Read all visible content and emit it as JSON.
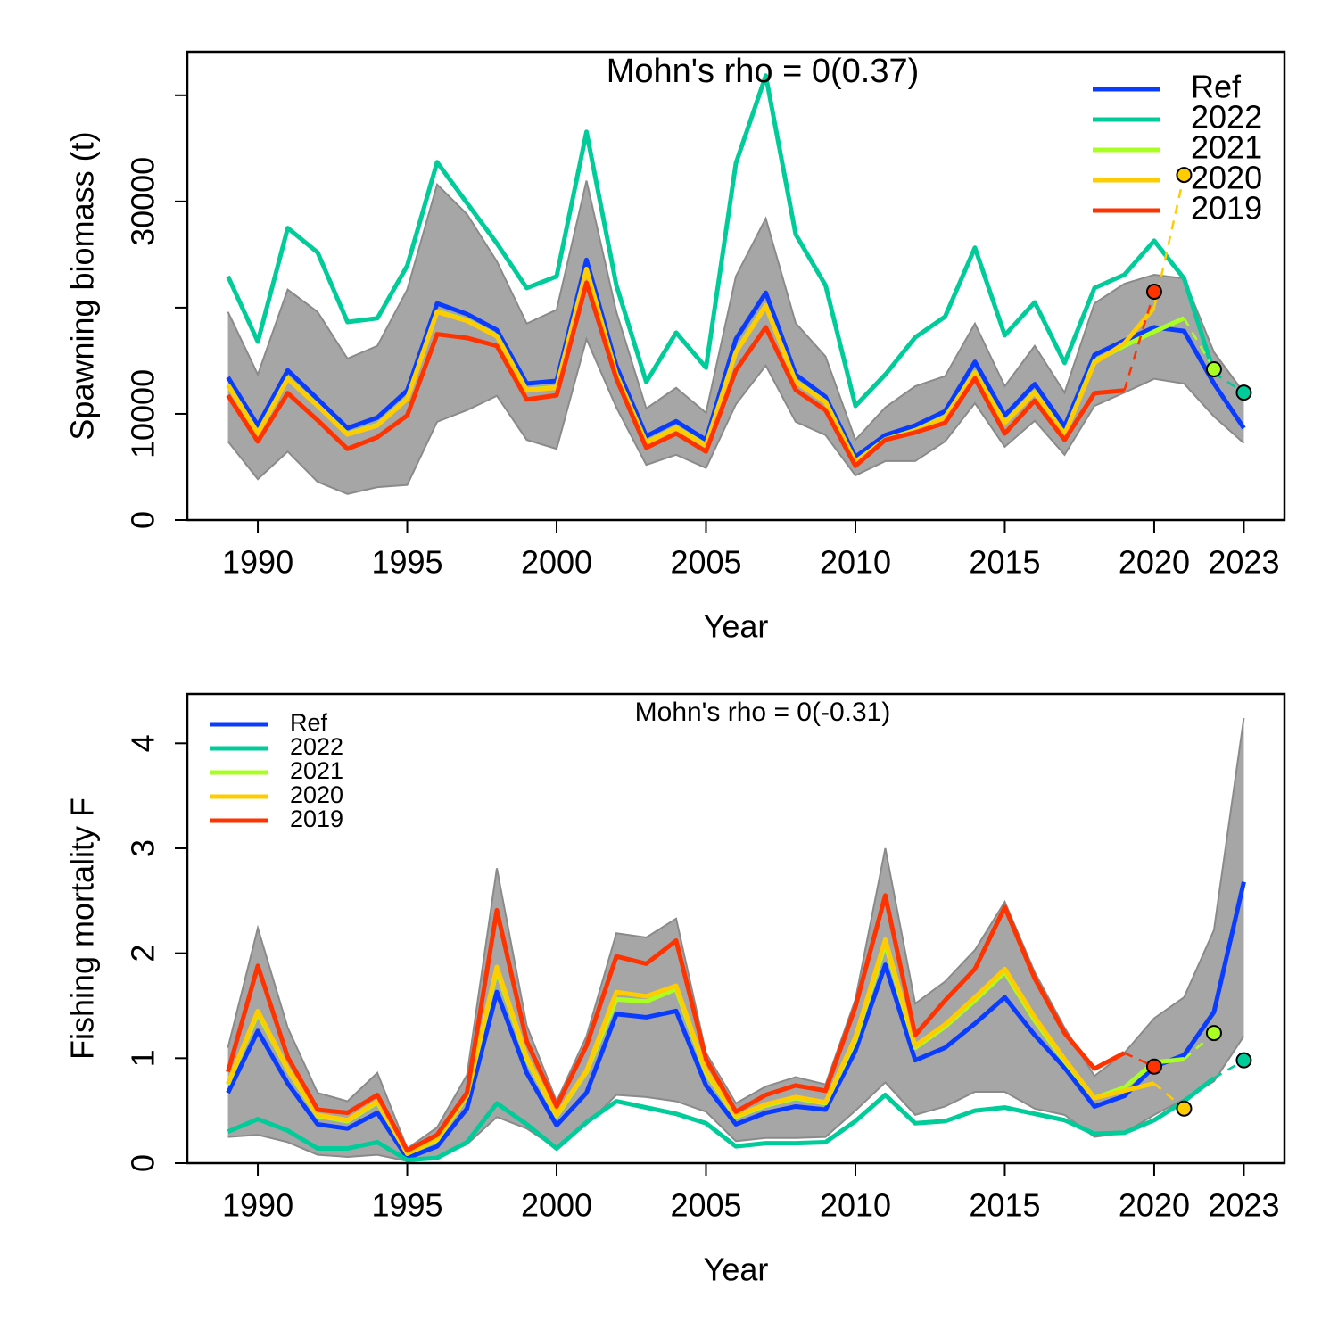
{
  "chart_data": [
    {
      "type": "line",
      "ylabel": "Spawning biomass (t)",
      "xlabel": "Year",
      "annotation": "Mohn's rho = 0(0.37)",
      "legend": "topright",
      "x": [
        1989,
        1990,
        1991,
        1992,
        1993,
        1994,
        1995,
        1996,
        1997,
        1998,
        1999,
        2000,
        2001,
        2002,
        2003,
        2004,
        2005,
        2006,
        2007,
        2008,
        2009,
        2010,
        2011,
        2012,
        2013,
        2014,
        2015,
        2016,
        2017,
        2018,
        2019,
        2020,
        2021,
        2022,
        2023
      ],
      "xlim": [
        1987.64,
        2024.36
      ],
      "xticks": [
        1990,
        1995,
        2000,
        2005,
        2010,
        2015,
        2020,
        2023
      ],
      "ylim": [
        0,
        44100
      ],
      "yticks": [
        0,
        10000,
        {
          "value": 20000,
          "label": null
        },
        30000,
        {
          "value": 40000,
          "label": null
        }
      ],
      "band": {
        "color": "#a6a6a6",
        "upper": [
          19600,
          13700,
          21700,
          19600,
          15200,
          16400,
          21700,
          31600,
          28800,
          24350,
          18500,
          19800,
          31950,
          19600,
          10500,
          12450,
          10100,
          22950,
          28400,
          18550,
          15400,
          7550,
          10600,
          12600,
          13550,
          18500,
          12600,
          16400,
          12000,
          20400,
          22250,
          23100,
          22750,
          15800,
          12000
        ],
        "lower": [
          7400,
          3850,
          6450,
          3600,
          2450,
          3100,
          3300,
          9250,
          10350,
          11700,
          7550,
          6700,
          17050,
          10600,
          5200,
          6150,
          4900,
          10900,
          14550,
          9250,
          8000,
          4200,
          5550,
          5550,
          7400,
          11000,
          6900,
          9350,
          6150,
          10750,
          12000,
          13300,
          12850,
          9750,
          7250
        ]
      },
      "series": [
        {
          "name": "Ref",
          "color": "#0a3cff",
          "values": [
            13450,
            8900,
            14100,
            11400,
            8650,
            9650,
            12200,
            20400,
            19400,
            17900,
            12850,
            13100,
            24500,
            14500,
            7900,
            9300,
            7550,
            17050,
            21400,
            13700,
            11600,
            5950,
            8000,
            8900,
            10250,
            14900,
            9850,
            12800,
            8800,
            15550,
            16900,
            18150,
            17800,
            12850,
            8650
          ]
        },
        {
          "name": "2022",
          "color": "#00cc99",
          "values": [
            22950,
            16800,
            27500,
            25200,
            18650,
            19000,
            23950,
            33700,
            29850,
            26050,
            21850,
            22950,
            36550,
            22100,
            13000,
            17650,
            14350,
            33600,
            41850,
            26900,
            22100,
            10750,
            13700,
            17200,
            19150,
            25650,
            17400,
            20500,
            14800,
            21850,
            23100,
            26300,
            22750,
            13850,
            null
          ],
          "projection": {
            "x": 2023,
            "value": 12000
          }
        },
        {
          "name": "2021",
          "color": "#aaff22",
          "values": [
            12750,
            8200,
            13350,
            10800,
            8100,
            8950,
            11450,
            19650,
            18800,
            17350,
            12250,
            12500,
            23650,
            13750,
            7300,
            8700,
            7050,
            15850,
            20200,
            13050,
            11150,
            5500,
            7600,
            8450,
            9700,
            13900,
            9200,
            12050,
            8100,
            14950,
            16400,
            17750,
            19000,
            null,
            null
          ],
          "projection": {
            "x": 2022,
            "value": 14200
          }
        },
        {
          "name": "2020",
          "color": "#ffcc00",
          "values": [
            12700,
            8150,
            13300,
            10750,
            8050,
            8900,
            11400,
            19600,
            18750,
            17300,
            12200,
            12450,
            23600,
            13700,
            7250,
            8650,
            7000,
            15800,
            20150,
            13000,
            11100,
            5450,
            7550,
            8400,
            9650,
            13850,
            9150,
            12000,
            8050,
            14800,
            16650,
            20000,
            null,
            null,
            null
          ],
          "projection": {
            "x": 2021,
            "value": 32500
          }
        },
        {
          "name": "2019",
          "color": "#ff3300",
          "values": [
            11750,
            7400,
            11950,
            9400,
            6700,
            7800,
            9850,
            17500,
            17150,
            16400,
            11350,
            11750,
            22350,
            13300,
            6800,
            8150,
            6450,
            14100,
            18150,
            12250,
            10350,
            5100,
            7550,
            8250,
            9150,
            13350,
            8150,
            11250,
            7550,
            11950,
            12200,
            null,
            null,
            null,
            null
          ],
          "projection": {
            "x": 2020,
            "value": 21500
          }
        }
      ]
    },
    {
      "type": "line",
      "ylabel": "Fishing mortality F",
      "xlabel": "Year",
      "annotation": "Mohn's rho = 0(-0.31)",
      "legend": "topleft",
      "x": [
        1989,
        1990,
        1991,
        1992,
        1993,
        1994,
        1995,
        1996,
        1997,
        1998,
        1999,
        2000,
        2001,
        2002,
        2003,
        2004,
        2005,
        2006,
        2007,
        2008,
        2009,
        2010,
        2011,
        2012,
        2013,
        2014,
        2015,
        2016,
        2017,
        2018,
        2019,
        2020,
        2021,
        2022,
        2023
      ],
      "xlim": [
        1987.64,
        2024.36
      ],
      "xticks": [
        1990,
        1995,
        2000,
        2005,
        2010,
        2015,
        2020,
        2023
      ],
      "ylim": [
        0,
        4.47
      ],
      "yticks": [
        0,
        1,
        2,
        3,
        4
      ],
      "band": {
        "color": "#a6a6a6",
        "upper": [
          1.1,
          2.24,
          1.29,
          0.67,
          0.59,
          0.86,
          0.14,
          0.34,
          0.84,
          2.81,
          1.31,
          0.59,
          1.21,
          2.19,
          2.15,
          2.33,
          1.05,
          0.57,
          0.73,
          0.82,
          0.75,
          1.56,
          3.0,
          1.52,
          1.73,
          2.03,
          2.49,
          1.82,
          1.29,
          0.83,
          1.05,
          1.38,
          1.58,
          2.22,
          4.24
        ],
        "lower": [
          0.25,
          0.27,
          0.2,
          0.08,
          0.06,
          0.08,
          0.02,
          0.05,
          0.18,
          0.44,
          0.33,
          0.14,
          0.37,
          0.65,
          0.63,
          0.59,
          0.49,
          0.21,
          0.24,
          0.24,
          0.25,
          0.5,
          0.77,
          0.46,
          0.54,
          0.68,
          0.68,
          0.52,
          0.46,
          0.25,
          0.29,
          0.46,
          0.61,
          0.78,
          1.21
        ]
      },
      "series": [
        {
          "name": "Ref",
          "color": "#0a3cff",
          "values": [
            0.67,
            1.26,
            0.76,
            0.37,
            0.33,
            0.48,
            0.05,
            0.16,
            0.52,
            1.63,
            0.86,
            0.36,
            0.67,
            1.42,
            1.39,
            1.45,
            0.74,
            0.37,
            0.48,
            0.54,
            0.51,
            1.07,
            1.89,
            0.98,
            1.1,
            1.33,
            1.58,
            1.22,
            0.91,
            0.54,
            0.64,
            0.92,
            1.03,
            1.44,
            2.68
          ]
        },
        {
          "name": "2022",
          "color": "#00cc99",
          "values": [
            0.3,
            0.42,
            0.31,
            0.14,
            0.14,
            0.2,
            0.03,
            0.05,
            0.2,
            0.57,
            0.37,
            0.14,
            0.39,
            0.59,
            0.53,
            0.47,
            0.38,
            0.16,
            0.19,
            0.19,
            0.2,
            0.4,
            0.65,
            0.38,
            0.4,
            0.5,
            0.53,
            0.47,
            0.41,
            0.28,
            0.29,
            0.41,
            0.59,
            0.81,
            null
          ],
          "projection": {
            "x": 2023,
            "value": 0.98
          }
        },
        {
          "name": "2021",
          "color": "#aaff22",
          "values": [
            0.75,
            1.43,
            0.89,
            0.45,
            0.4,
            0.58,
            0.09,
            0.22,
            0.64,
            1.84,
            0.99,
            0.45,
            0.87,
            1.56,
            1.54,
            1.66,
            0.86,
            0.44,
            0.55,
            0.62,
            0.57,
            1.17,
            2.09,
            1.1,
            1.3,
            1.55,
            1.82,
            1.36,
            0.97,
            0.62,
            0.72,
            0.96,
            0.99,
            null,
            null
          ],
          "projection": {
            "x": 2022,
            "value": 1.24
          }
        },
        {
          "name": "2020",
          "color": "#ffcc00",
          "values": [
            0.76,
            1.45,
            0.9,
            0.46,
            0.41,
            0.59,
            0.09,
            0.23,
            0.65,
            1.87,
            1.01,
            0.46,
            0.88,
            1.63,
            1.59,
            1.69,
            0.88,
            0.45,
            0.56,
            0.63,
            0.58,
            1.2,
            2.13,
            1.12,
            1.32,
            1.58,
            1.85,
            1.39,
            0.99,
            0.62,
            0.69,
            0.76,
            null,
            null,
            null
          ],
          "projection": {
            "x": 2021,
            "value": 0.52
          }
        },
        {
          "name": "2019",
          "color": "#ff3300",
          "values": [
            0.87,
            1.88,
            1.01,
            0.51,
            0.48,
            0.65,
            0.12,
            0.27,
            0.67,
            2.41,
            1.16,
            0.54,
            1.12,
            1.97,
            1.9,
            2.12,
            0.99,
            0.49,
            0.65,
            0.74,
            0.69,
            1.49,
            2.55,
            1.22,
            1.55,
            1.85,
            2.44,
            1.76,
            1.24,
            0.9,
            1.05,
            null,
            null,
            null,
            null
          ],
          "projection": {
            "x": 2020,
            "value": 0.92
          }
        }
      ]
    }
  ]
}
